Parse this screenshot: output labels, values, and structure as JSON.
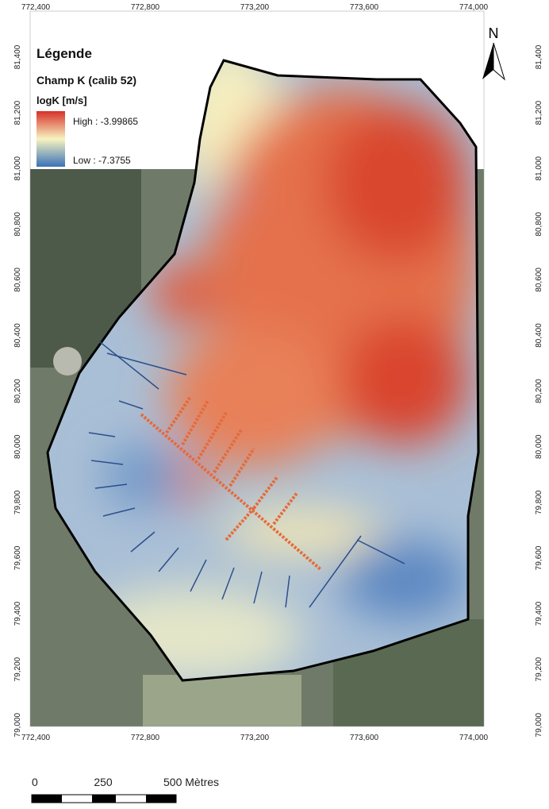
{
  "map": {
    "x_tick_labels": [
      "772,400",
      "772,800",
      "773,200",
      "773,600",
      "774,000"
    ],
    "y_tick_labels": [
      "81,400",
      "81,200",
      "81,000",
      "80,800",
      "80,600",
      "80,400",
      "80,200",
      "80,000",
      "79,800",
      "79,600",
      "79,400",
      "79,200",
      "79,000"
    ],
    "legend": {
      "title": "Légende",
      "layer": "Champ K (calib 52)",
      "field": "logK [m/s]",
      "high": "High : -3.99865",
      "low": "Low : -7.3755"
    },
    "north": "N",
    "scale_bar": {
      "labels": [
        "0",
        "250",
        "500 Mètres"
      ]
    }
  }
}
